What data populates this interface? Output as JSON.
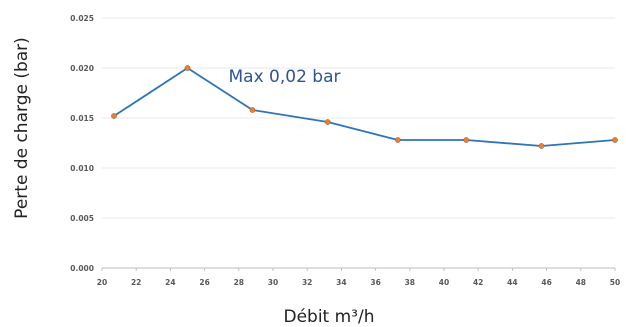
{
  "chart_data": {
    "type": "line",
    "title": "",
    "xlabel": "Débit m³/h",
    "ylabel": "Perte de charge (bar)",
    "xlim": [
      20,
      50
    ],
    "ylim": [
      0,
      0.025
    ],
    "x_ticks": [
      "20",
      "22",
      "24",
      "26",
      "28",
      "30",
      "32",
      "34",
      "36",
      "38",
      "40",
      "42",
      "44",
      "46",
      "48",
      "50"
    ],
    "y_ticks": [
      "0.000",
      "0.005",
      "0.010",
      "0.015",
      "0.020",
      "0.025"
    ],
    "grid": "horizontal",
    "series": [
      {
        "x": [
          20.7,
          25.0,
          28.8,
          33.2,
          37.3,
          41.3,
          45.7,
          50.0
        ],
        "y": [
          0.0152,
          0.02,
          0.0158,
          0.0146,
          0.0128,
          0.0128,
          0.0122,
          0.0128
        ],
        "line_color": "#2e75b6",
        "marker_color": "#ed7d31"
      }
    ],
    "annotations": [
      {
        "text": "Max 0,02 bar",
        "x": 25.0,
        "y": 0.02,
        "color": "#2f5597"
      }
    ]
  }
}
